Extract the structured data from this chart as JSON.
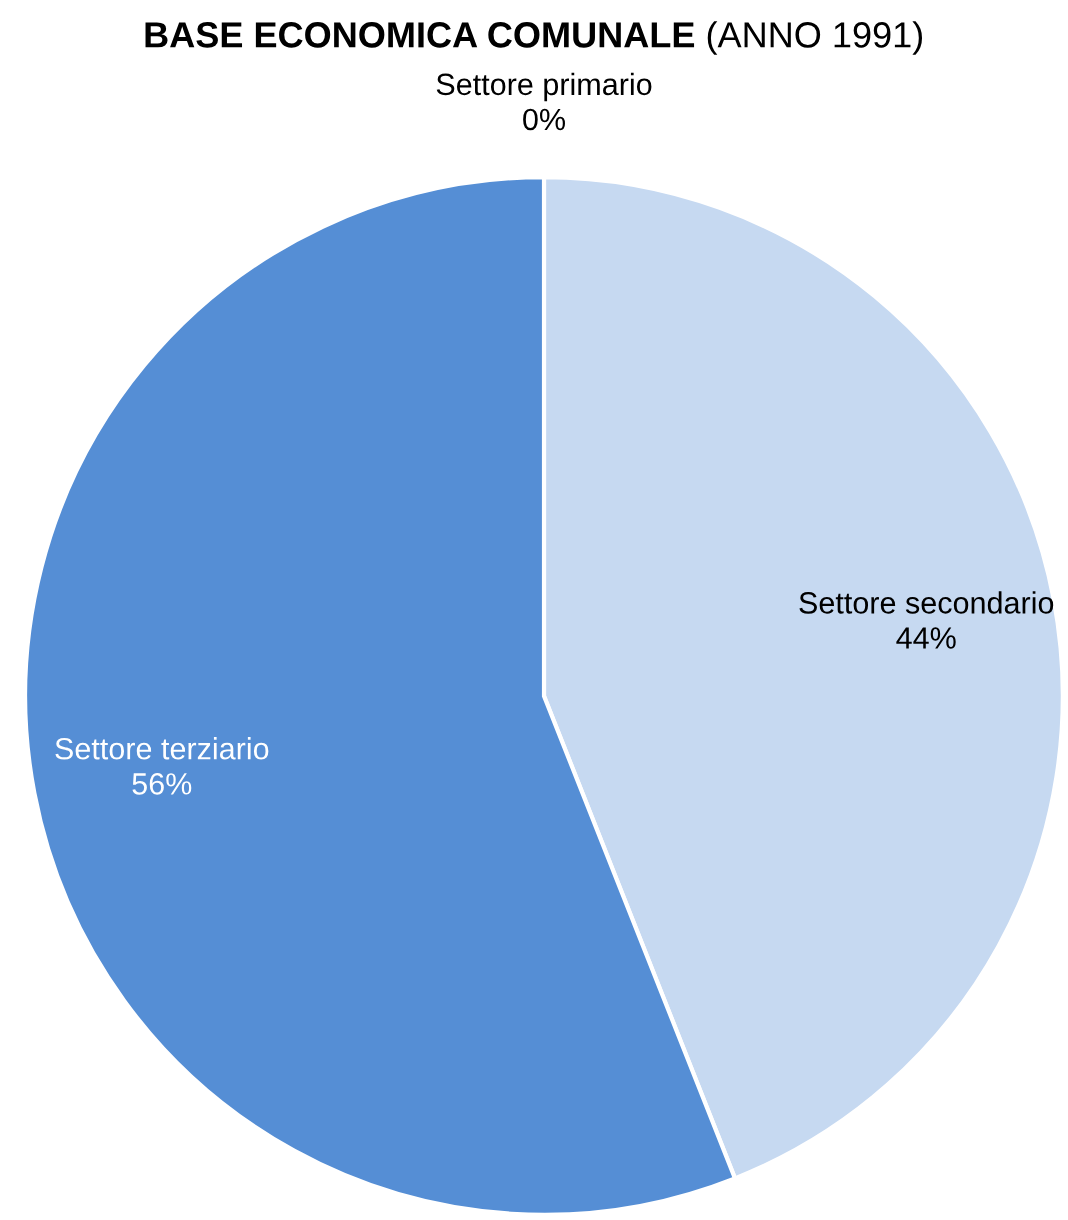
{
  "chart_data": {
    "type": "pie",
    "title": "BASE ECONOMICA COMUNALE",
    "subtitle": "(ANNO 1991)",
    "categories": [
      "Settore primario",
      "Settore secondario",
      "Settore terziario"
    ],
    "values": [
      0,
      44,
      56
    ],
    "colors": [
      "#2f4f7f",
      "#c6d9f1",
      "#558ed5"
    ],
    "value_labels": [
      "0%",
      "44%",
      "56%"
    ],
    "legend": false
  }
}
